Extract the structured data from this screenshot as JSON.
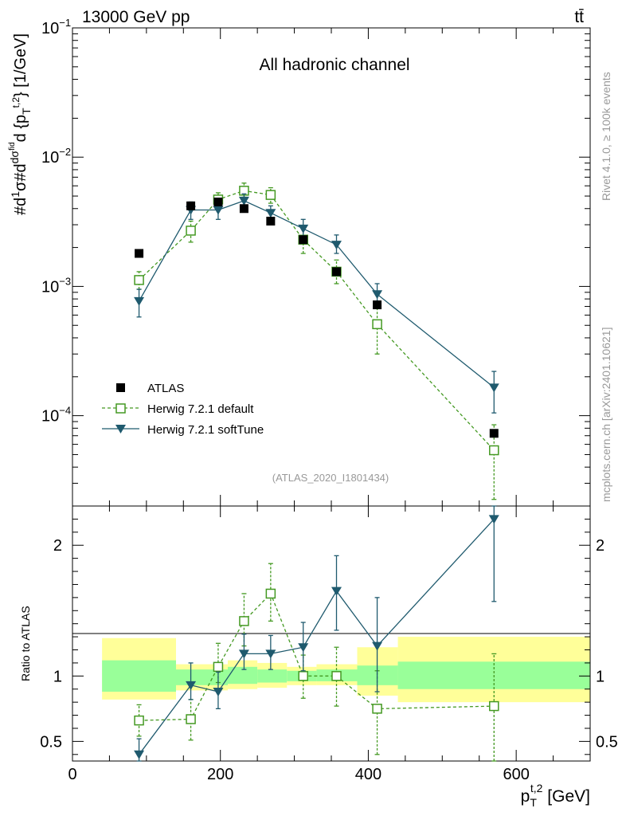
{
  "header": {
    "left": "13000 GeV pp",
    "right": "tt̄"
  },
  "side_labels": {
    "rivet": "Rivet 4.1.0, ≥ 100k events",
    "mcplots": "mcplots.cern.ch [arXiv:2401.10621]"
  },
  "chart_data": [
    {
      "type": "scatter",
      "panel": "main",
      "title": "All hadronic channel",
      "analysis_label": "(ATLAS_2020_I1801434)",
      "ylabel": "#d1σ#ddσ^{fid}d {p_T^{t,2}} [1/GeV]",
      "yscale": "log",
      "xlim": [
        0,
        700
      ],
      "ylim": [
        2e-05,
        0.1
      ],
      "y_ticks": [
        {
          "value": 0.1,
          "base": "10",
          "exp": "−1"
        },
        {
          "value": 0.01,
          "base": "10",
          "exp": "−2"
        },
        {
          "value": 0.001,
          "base": "10",
          "exp": "−3"
        },
        {
          "value": 0.0001,
          "base": "10",
          "exp": "−4"
        }
      ],
      "legend": [
        "ATLAS",
        "Herwig 7.2.1 default",
        "Herwig 7.2.1 softTune"
      ],
      "series": [
        {
          "name": "ATLAS",
          "color": "#000000",
          "marker": "square-filled",
          "x": [
            90,
            160,
            197,
            232,
            268,
            312,
            357,
            412,
            570
          ],
          "y": [
            0.0018,
            0.0042,
            0.0045,
            0.004,
            0.0032,
            0.0023,
            0.0013,
            0.00072,
            7.3e-05
          ]
        },
        {
          "name": "Herwig 7.2.1 default",
          "color": "#449922",
          "marker": "square-open",
          "dashed": true,
          "x": [
            90,
            160,
            197,
            232,
            268,
            312,
            357,
            412,
            570
          ],
          "y": [
            0.00112,
            0.0027,
            0.0047,
            0.0055,
            0.0051,
            0.0023,
            0.0013,
            0.00051,
            5.4e-05
          ],
          "y_low": [
            0.00095,
            0.0022,
            0.0041,
            0.0049,
            0.0044,
            0.0018,
            0.00105,
            0.0003,
            2.25e-05
          ],
          "y_high": [
            0.0013,
            0.0032,
            0.0053,
            0.0063,
            0.0058,
            0.0028,
            0.0016,
            0.00068,
            8.5e-05
          ]
        },
        {
          "name": "Herwig 7.2.1 softTune",
          "color": "#1f5a6e",
          "marker": "triangle-down",
          "dashed": false,
          "x": [
            90,
            160,
            197,
            232,
            268,
            312,
            357,
            412,
            570
          ],
          "y": [
            0.00077,
            0.0039,
            0.0039,
            0.0046,
            0.0037,
            0.0028,
            0.0021,
            0.00087,
            0.000165
          ],
          "y_low": [
            0.00058,
            0.0033,
            0.0033,
            0.004,
            0.0032,
            0.0023,
            0.0018,
            0.00068,
            0.000105
          ],
          "y_high": [
            0.00095,
            0.0045,
            0.0045,
            0.0052,
            0.0042,
            0.0033,
            0.0025,
            0.00105,
            0.00022
          ]
        }
      ]
    },
    {
      "type": "scatter",
      "panel": "ratio",
      "ylabel": "Ratio to ATLAS",
      "xlabel": "p_T^{t,2} [GeV]",
      "xlabel_main": "p",
      "xlabel_sub": "T",
      "xlabel_sup": "t,2",
      "xlabel_unit": " [GeV]",
      "xlim": [
        0,
        700
      ],
      "ylim": [
        0.35,
        2.3
      ],
      "x_ticks": [
        0,
        200,
        400,
        600
      ],
      "y_ticks": [
        0.5,
        1,
        2
      ],
      "y_tick_labels": [
        "0.5",
        "1",
        "2"
      ],
      "bands": [
        {
          "x0": 40,
          "x1": 140,
          "inner": [
            0.88,
            1.12
          ],
          "outer": [
            0.82,
            1.29
          ]
        },
        {
          "x0": 140,
          "x1": 210,
          "inner": [
            0.93,
            1.05
          ],
          "outer": [
            0.89,
            1.09
          ]
        },
        {
          "x0": 210,
          "x1": 250,
          "inner": [
            0.94,
            1.07
          ],
          "outer": [
            0.9,
            1.12
          ]
        },
        {
          "x0": 250,
          "x1": 290,
          "inner": [
            0.95,
            1.05
          ],
          "outer": [
            0.91,
            1.1
          ]
        },
        {
          "x0": 290,
          "x1": 330,
          "inner": [
            0.96,
            1.04
          ],
          "outer": [
            0.93,
            1.07
          ]
        },
        {
          "x0": 330,
          "x1": 385,
          "inner": [
            0.96,
            1.05
          ],
          "outer": [
            0.93,
            1.09
          ]
        },
        {
          "x0": 385,
          "x1": 440,
          "inner": [
            0.93,
            1.08
          ],
          "outer": [
            0.85,
            1.22
          ]
        },
        {
          "x0": 440,
          "x1": 700,
          "inner": [
            0.9,
            1.11
          ],
          "outer": [
            0.8,
            1.3
          ]
        }
      ],
      "series": [
        {
          "name": "Herwig 7.2.1 default",
          "color": "#449922",
          "marker": "square-open",
          "dashed": true,
          "x": [
            90,
            160,
            197,
            232,
            268,
            312,
            357,
            412,
            570
          ],
          "y": [
            0.66,
            0.67,
            1.07,
            1.42,
            1.63,
            1.0,
            1.0,
            0.75,
            0.77
          ],
          "y_low": [
            0.54,
            0.51,
            0.95,
            1.23,
            1.42,
            0.83,
            0.77,
            0.4,
            0.33
          ],
          "y_high": [
            0.78,
            0.82,
            1.25,
            1.63,
            1.86,
            1.16,
            1.22,
            1.04,
            1.17
          ]
        },
        {
          "name": "Herwig 7.2.1 softTune",
          "color": "#1f5a6e",
          "marker": "triangle-down",
          "dashed": false,
          "x": [
            90,
            160,
            197,
            232,
            268,
            312,
            357,
            412,
            570
          ],
          "y": [
            0.4,
            0.93,
            0.88,
            1.17,
            1.17,
            1.22,
            1.65,
            1.23,
            2.2
          ],
          "y_low": [
            0.32,
            0.82,
            0.75,
            1.05,
            1.05,
            1.04,
            1.35,
            0.88,
            1.57
          ],
          "y_high": [
            0.52,
            1.1,
            1.03,
            1.32,
            1.31,
            1.41,
            1.92,
            1.6,
            2.3
          ]
        }
      ]
    }
  ]
}
